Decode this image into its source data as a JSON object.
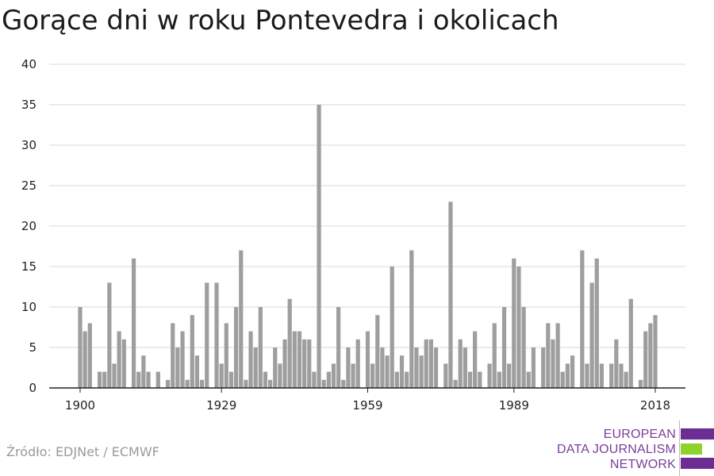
{
  "header": {
    "title": "Gorące dni w roku Pontevedra i okolicach"
  },
  "footer": {
    "source": "Źródło: EDJNet / ECMWF"
  },
  "logo": {
    "line1": "EUROPEAN",
    "line2": "DATA JOURNALISM",
    "line3": "NETWORK",
    "colors": {
      "text": "#7a3d9c",
      "purple": "#6b2d92",
      "green": "#8fd22b"
    }
  },
  "colors": {
    "bar": "#9e9e9e",
    "grid": "#d9d9d9",
    "axis": "#222222",
    "tick_label": "#222222"
  },
  "chart_data": {
    "type": "bar",
    "title": "Gorące dni w roku Pontevedra i okolicach",
    "xlabel": "",
    "ylabel": "",
    "ylim": [
      0,
      40
    ],
    "y_ticks": [
      0,
      5,
      10,
      15,
      20,
      25,
      30,
      35,
      40
    ],
    "x_ticks": [
      1900,
      1929,
      1959,
      1989,
      2018
    ],
    "grid": true,
    "legend": "none",
    "x": [
      1900,
      1901,
      1902,
      1903,
      1904,
      1905,
      1906,
      1907,
      1908,
      1909,
      1910,
      1911,
      1912,
      1913,
      1914,
      1915,
      1916,
      1917,
      1918,
      1919,
      1920,
      1921,
      1922,
      1923,
      1924,
      1925,
      1926,
      1927,
      1928,
      1929,
      1930,
      1931,
      1932,
      1933,
      1934,
      1935,
      1936,
      1937,
      1938,
      1939,
      1940,
      1941,
      1942,
      1943,
      1944,
      1945,
      1946,
      1947,
      1948,
      1949,
      1950,
      1951,
      1952,
      1953,
      1954,
      1955,
      1956,
      1957,
      1958,
      1959,
      1960,
      1961,
      1962,
      1963,
      1964,
      1965,
      1966,
      1967,
      1968,
      1969,
      1970,
      1971,
      1972,
      1973,
      1974,
      1975,
      1976,
      1977,
      1978,
      1979,
      1980,
      1981,
      1982,
      1983,
      1984,
      1985,
      1986,
      1987,
      1988,
      1989,
      1990,
      1991,
      1992,
      1993,
      1994,
      1995,
      1996,
      1997,
      1998,
      1999,
      2000,
      2001,
      2002,
      2003,
      2004,
      2005,
      2006,
      2007,
      2008,
      2009,
      2010,
      2011,
      2012,
      2013,
      2014,
      2015,
      2016,
      2017,
      2018
    ],
    "values": [
      10,
      7,
      8,
      0,
      2,
      2,
      13,
      3,
      7,
      6,
      0,
      16,
      2,
      4,
      2,
      0,
      2,
      0,
      1,
      8,
      5,
      7,
      1,
      9,
      4,
      1,
      13,
      0,
      13,
      3,
      8,
      2,
      10,
      17,
      1,
      7,
      5,
      10,
      2,
      1,
      5,
      3,
      6,
      11,
      7,
      7,
      6,
      6,
      2,
      35,
      1,
      2,
      3,
      10,
      1,
      5,
      3,
      6,
      0,
      7,
      3,
      9,
      5,
      4,
      15,
      2,
      4,
      2,
      17,
      5,
      4,
      6,
      6,
      5,
      0,
      3,
      23,
      1,
      6,
      5,
      2,
      7,
      2,
      0,
      3,
      8,
      2,
      10,
      3,
      16,
      15,
      10,
      2,
      5,
      0,
      5,
      8,
      6,
      8,
      2,
      3,
      4,
      0,
      17,
      3,
      13,
      16,
      3,
      0,
      3,
      6,
      3,
      2,
      11,
      0,
      1,
      7,
      8,
      9
    ]
  }
}
